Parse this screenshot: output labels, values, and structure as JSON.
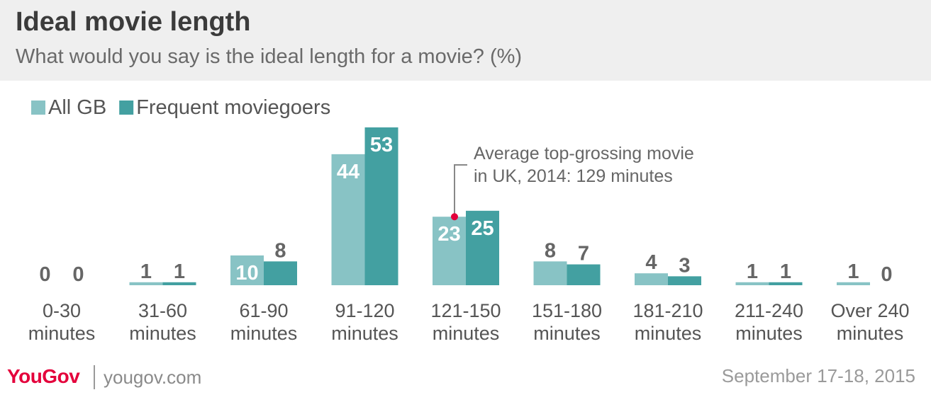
{
  "chart_data": {
    "type": "bar",
    "title": "Ideal movie length",
    "subtitle": "What would you say is the ideal length for a movie? (%)",
    "categories": [
      [
        "0-30",
        "minutes"
      ],
      [
        "31-60",
        "minutes"
      ],
      [
        "61-90",
        "minutes"
      ],
      [
        "91-120",
        "minutes"
      ],
      [
        "121-150",
        "minutes"
      ],
      [
        "151-180",
        "minutes"
      ],
      [
        "181-210",
        "minutes"
      ],
      [
        "211-240",
        "minutes"
      ],
      [
        "Over 240",
        "minutes"
      ]
    ],
    "series": [
      {
        "name": "All GB",
        "color": "#88c3c5",
        "values": [
          0,
          1,
          10,
          44,
          23,
          8,
          4,
          1,
          1
        ]
      },
      {
        "name": "Frequent moviegoers",
        "color": "#43a0a1",
        "values": [
          0,
          1,
          8,
          53,
          25,
          7,
          3,
          1,
          0
        ]
      }
    ],
    "legend_position": "top-left",
    "annotation": {
      "lines": [
        "Average top-grossing movie",
        "in UK, 2014: 129 minutes"
      ],
      "value_minutes": 129,
      "marker_color": "#e4003b"
    },
    "grid": false,
    "ylim": [
      0,
      53
    ]
  },
  "footer": {
    "logo": "YouGov",
    "site": "yougov.com",
    "date": "September 17-18, 2015"
  }
}
